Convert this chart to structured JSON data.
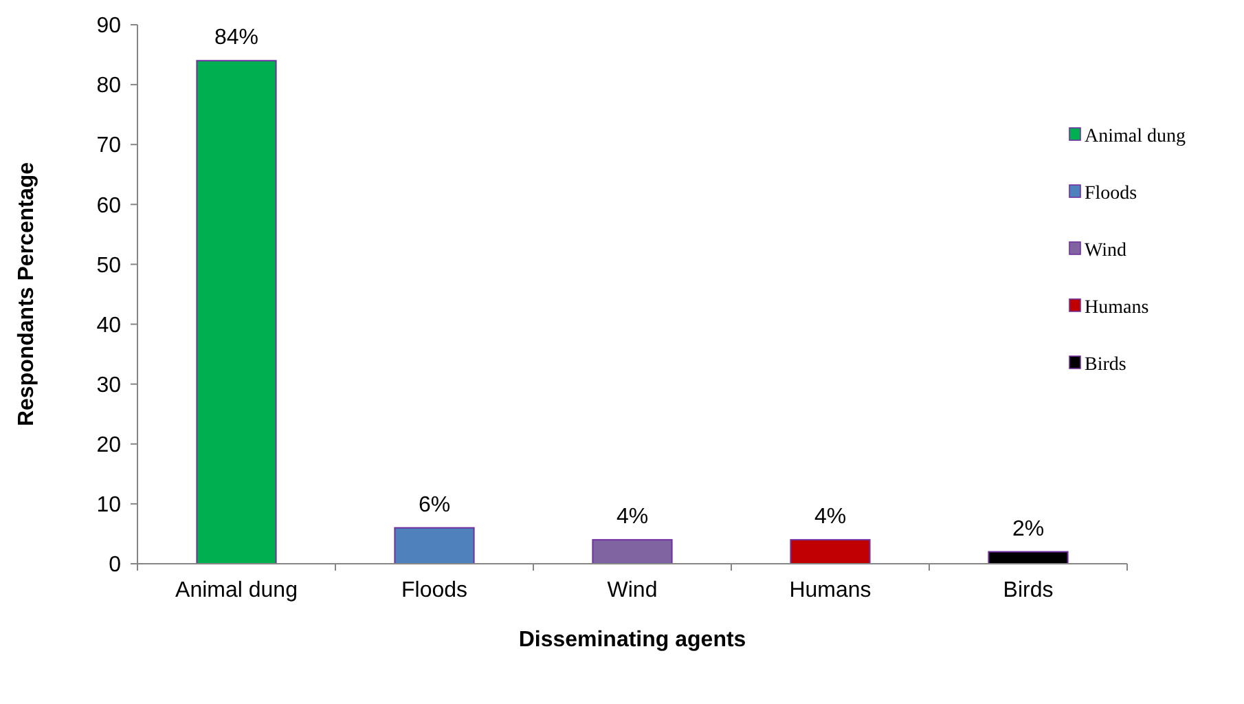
{
  "chart_data": {
    "type": "bar",
    "categories": [
      "Animal dung",
      "Floods",
      "Wind",
      "Humans",
      "Birds"
    ],
    "series": [
      {
        "name": "Animal dung",
        "color": "#00b050",
        "values": [
          84,
          null,
          null,
          null,
          null
        ],
        "value_labels": [
          "84%",
          null,
          null,
          null,
          null
        ]
      },
      {
        "name": "Floods",
        "color": "#4f81bd",
        "values": [
          null,
          6,
          null,
          null,
          null
        ],
        "value_labels": [
          null,
          "6%",
          null,
          null,
          null
        ]
      },
      {
        "name": "Wind",
        "color": "#8064a2",
        "values": [
          null,
          null,
          4,
          null,
          null
        ],
        "value_labels": [
          null,
          null,
          "4%",
          null,
          null
        ]
      },
      {
        "name": "Humans",
        "color": "#c00000",
        "values": [
          null,
          null,
          null,
          4,
          null
        ],
        "value_labels": [
          null,
          null,
          null,
          "4%",
          null
        ]
      },
      {
        "name": "Birds",
        "color": "#000000",
        "values": [
          null,
          null,
          null,
          null,
          2
        ],
        "value_labels": [
          null,
          null,
          null,
          null,
          "2%"
        ]
      }
    ],
    "xlabel": "Disseminating agents",
    "ylabel": "Respondants Percentage",
    "ylim": [
      0,
      90
    ],
    "yticks": [
      0,
      10,
      20,
      30,
      40,
      50,
      60,
      70,
      80,
      90
    ],
    "grid": false,
    "legend": "right"
  }
}
